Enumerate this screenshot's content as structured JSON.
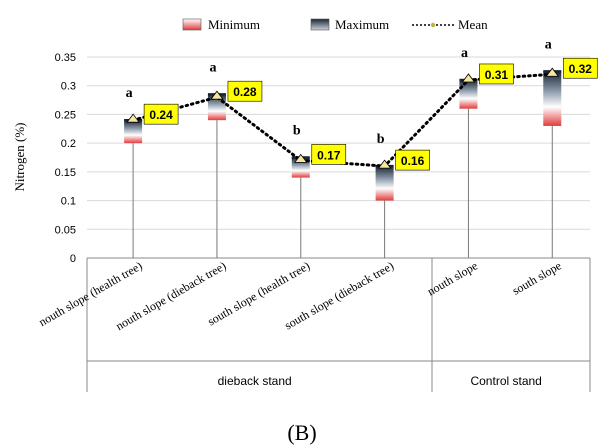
{
  "chart_data": {
    "type": "bar",
    "panel_label": "(B)",
    "ylabel": "Nitrogen (%)",
    "ylim": [
      0,
      0.35
    ],
    "yticks": [
      "0",
      "0.05",
      "0.1",
      "0.15",
      "0.2",
      "0.25",
      "0.3",
      "0.35"
    ],
    "legend": {
      "min_label": "Minimum",
      "max_label": "Maximum",
      "mean_label": "Mean",
      "placement": "top"
    },
    "categories": [
      "nouth slope (health tree)",
      "nouth slope (dieback  tree)",
      "south slope (health tree)",
      "south slope (dieback  tree)",
      "nouth slope",
      "south slope"
    ],
    "groups": [
      {
        "label": "dieback stand",
        "span": [
          0,
          3
        ]
      },
      {
        "label": "Control stand",
        "span": [
          4,
          5
        ]
      }
    ],
    "series": [
      {
        "name": "Minimum",
        "values": [
          0.2,
          0.24,
          0.14,
          0.1,
          0.26,
          0.23
        ]
      },
      {
        "name": "Maximum",
        "values": [
          0.24,
          0.285,
          0.175,
          0.16,
          0.31,
          0.325
        ]
      },
      {
        "name": "Mean",
        "values": [
          0.24,
          0.28,
          0.17,
          0.16,
          0.31,
          0.32
        ]
      }
    ],
    "mean_labels": [
      "0.24",
      "0.28",
      "0.17",
      "0.16",
      "0.31",
      "0.32"
    ],
    "significance": [
      "a",
      "a",
      "b",
      "b",
      "a",
      "a"
    ],
    "colors": {
      "min": "#e03c3c",
      "max": "#1c2430",
      "mean_line": "#000000",
      "label_bg": "#ffff00",
      "grid": "#d9d9d9",
      "marker": "#f5e6a0"
    }
  }
}
